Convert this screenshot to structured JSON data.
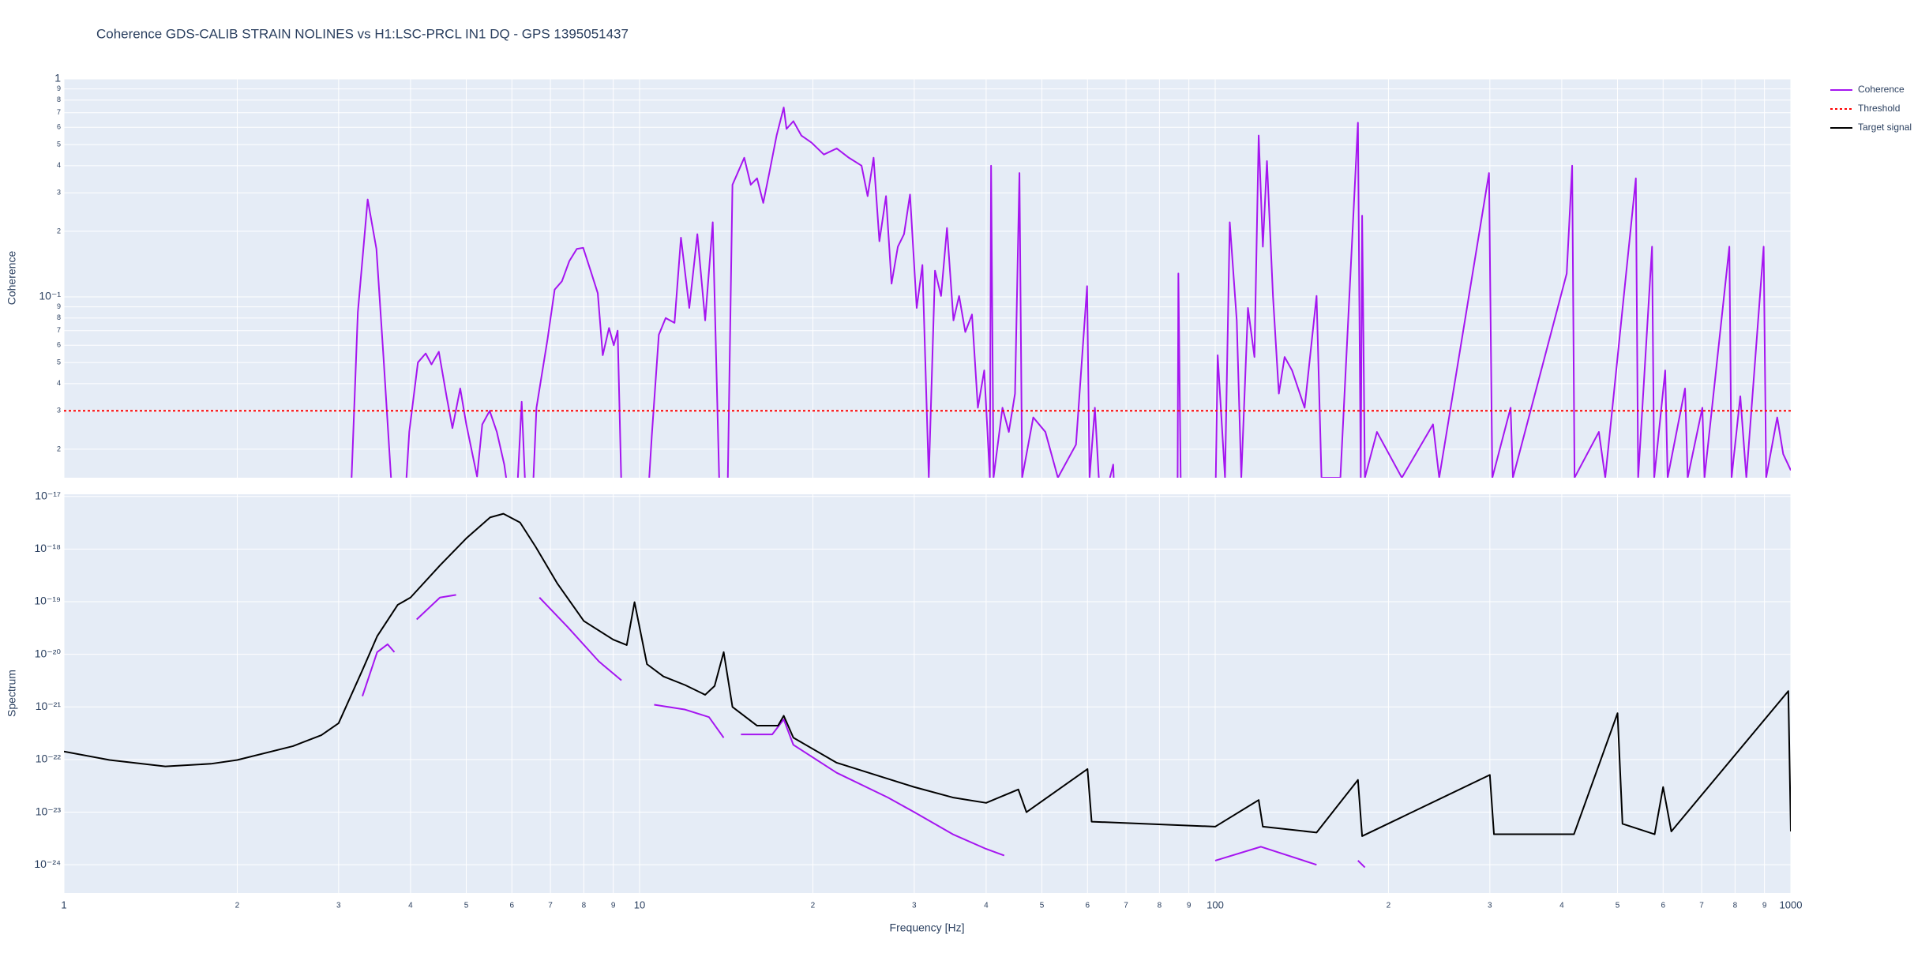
{
  "chart_data": [
    {
      "type": "line",
      "title": "Coherence GDS-CALIB STRAIN NOLINES vs H1:LSC-PRCL IN1 DQ - GPS 1395051437",
      "y_label": "Coherence",
      "ylog": true,
      "ylim": [
        0.0148,
        1
      ],
      "grid": true,
      "legend": "right",
      "yticks": [
        {
          "value": 0.02,
          "label": "2"
        },
        {
          "value": 0.03,
          "label": "3"
        },
        {
          "value": 0.04,
          "label": "4"
        },
        {
          "value": 0.05,
          "label": "5"
        },
        {
          "value": 0.06,
          "label": "6"
        },
        {
          "value": 0.07,
          "label": "7"
        },
        {
          "value": 0.08,
          "label": "8"
        },
        {
          "value": 0.09,
          "label": "9"
        },
        {
          "value": 0.1,
          "label": "10⁻¹"
        },
        {
          "value": 0.2,
          "label": "2"
        },
        {
          "value": 0.3,
          "label": "3"
        },
        {
          "value": 0.4,
          "label": "4"
        },
        {
          "value": 0.5,
          "label": "5"
        },
        {
          "value": 0.6,
          "label": "6"
        },
        {
          "value": 0.7,
          "label": "7"
        },
        {
          "value": 0.8,
          "label": "8"
        },
        {
          "value": 0.9,
          "label": "9"
        },
        1
      ],
      "series": [
        {
          "name": "Coherence",
          "color": "#a515f0",
          "x": [
            3.1,
            3.16,
            3.24,
            3.37,
            3.49,
            3.59,
            3.7,
            3.8,
            3.9,
            3.98,
            4.12,
            4.25,
            4.35,
            4.48,
            4.62,
            4.73,
            4.88,
            5.0,
            5.22,
            5.33,
            5.49,
            5.65,
            5.82,
            5.99,
            6.1,
            6.24,
            6.36,
            6.5,
            6.62,
            6.92,
            7.12,
            7.33,
            7.55,
            7.78,
            7.98,
            8.22,
            8.46,
            8.63,
            8.85,
            9.02,
            9.16,
            9.29,
            9.4,
            10.3,
            10.5,
            10.8,
            11.1,
            11.5,
            11.8,
            12.2,
            12.6,
            13.0,
            13.4,
            13.8,
            14.2,
            14.5,
            14.8,
            15.2,
            15.6,
            16.0,
            16.4,
            16.8,
            17.3,
            17.8,
            18.0,
            18.5,
            19.1,
            19.9,
            20.9,
            22.0,
            23.1,
            24.3,
            24.9,
            25.5,
            26.1,
            26.8,
            27.4,
            28.1,
            28.8,
            29.5,
            30.3,
            31.0,
            31.8,
            32.6,
            33.4,
            34.2,
            35.1,
            35.9,
            36.8,
            37.8,
            38.7,
            39.7,
            40.6,
            40.8,
            41.2,
            42.7,
            43.8,
            44.9,
            45.7,
            46.2,
            48.3,
            50.7,
            53.3,
            57.3,
            59.9,
            60.5,
            61.8,
            63.3,
            66.5,
            67,
            86.0,
            86.3,
            87.1,
            100,
            101,
            104,
            106,
            109,
            111,
            114,
            117,
            119,
            121,
            123,
            126,
            129,
            132,
            136,
            143,
            150,
            153,
            165,
            177,
            179,
            180,
            182,
            191,
            211,
            239,
            245,
            299,
            303,
            326,
            329,
            408,
            417,
            421,
            464,
            476,
            538,
            543,
            574,
            579,
            605,
            611,
            655,
            662,
            702,
            708,
            782,
            789,
            817,
            837,
            897,
            906,
            947,
            970,
            1000
          ],
          "values": [
            0.01,
            0.0148,
            0.085,
            0.28,
            0.166,
            0.053,
            0.0148,
            0.01,
            0.01,
            0.024,
            0.05,
            0.055,
            0.049,
            0.056,
            0.035,
            0.025,
            0.038,
            0.026,
            0.015,
            0.026,
            0.03,
            0.024,
            0.017,
            0.01,
            0.01,
            0.033,
            0.01,
            0.01,
            0.031,
            0.064,
            0.108,
            0.118,
            0.146,
            0.166,
            0.168,
            0.132,
            0.104,
            0.054,
            0.072,
            0.06,
            0.07,
            0.0148,
            0.01,
            0.01,
            0.023,
            0.067,
            0.08,
            0.076,
            0.187,
            0.089,
            0.194,
            0.078,
            0.22,
            0.01,
            0.01,
            0.327,
            0.37,
            0.435,
            0.327,
            0.35,
            0.27,
            0.37,
            0.55,
            0.74,
            0.59,
            0.64,
            0.55,
            0.51,
            0.45,
            0.48,
            0.435,
            0.4,
            0.29,
            0.435,
            0.18,
            0.29,
            0.115,
            0.17,
            0.194,
            0.295,
            0.089,
            0.14,
            0.0148,
            0.132,
            0.101,
            0.207,
            0.078,
            0.101,
            0.069,
            0.083,
            0.031,
            0.046,
            0.0148,
            0.4,
            0.0148,
            0.031,
            0.024,
            0.036,
            0.37,
            0.0148,
            0.028,
            0.024,
            0.0148,
            0.021,
            0.112,
            0.0148,
            0.031,
            0.01,
            0.017,
            0.01,
            0.01,
            0.128,
            0.0148,
            0.01,
            0.054,
            0.0148,
            0.22,
            0.078,
            0.0148,
            0.089,
            0.053,
            0.55,
            0.17,
            0.42,
            0.101,
            0.036,
            0.053,
            0.046,
            0.031,
            0.101,
            0.0148,
            0.0148,
            0.63,
            0.0148,
            0.236,
            0.0148,
            0.024,
            0.0148,
            0.026,
            0.0148,
            0.37,
            0.0148,
            0.031,
            0.0148,
            0.128,
            0.4,
            0.0148,
            0.024,
            0.0148,
            0.35,
            0.0148,
            0.17,
            0.0148,
            0.046,
            0.0148,
            0.038,
            0.0148,
            0.031,
            0.0148,
            0.17,
            0.0148,
            0.035,
            0.0148,
            0.17,
            0.0148,
            0.028,
            0.019,
            0.016
          ]
        },
        {
          "name": "Threshold",
          "color": "#ff0000",
          "dash": "dot",
          "x": [
            1,
            1000
          ],
          "values": [
            0.03,
            0.03
          ]
        }
      ]
    },
    {
      "type": "line",
      "x_label": "Frequency [Hz]",
      "y_label": "Spectrum",
      "xlog": true,
      "ylog": true,
      "xlim": [
        1,
        1000
      ],
      "ylim": [
        2.9e-25,
        1.1e-17
      ],
      "grid": true,
      "xticks": [
        1,
        2,
        3,
        4,
        5,
        6,
        7,
        8,
        9,
        10,
        {
          "value": 20,
          "label": "2"
        },
        {
          "value": 30,
          "label": "3"
        },
        {
          "value": 40,
          "label": "4"
        },
        {
          "value": 50,
          "label": "5"
        },
        {
          "value": 60,
          "label": "6"
        },
        {
          "value": 70,
          "label": "7"
        },
        {
          "value": 80,
          "label": "8"
        },
        {
          "value": 90,
          "label": "9"
        },
        100,
        {
          "value": 200,
          "label": "2"
        },
        {
          "value": 300,
          "label": "3"
        },
        {
          "value": 400,
          "label": "4"
        },
        {
          "value": 500,
          "label": "5"
        },
        {
          "value": 600,
          "label": "6"
        },
        {
          "value": 700,
          "label": "7"
        },
        {
          "value": 800,
          "label": "8"
        },
        {
          "value": 900,
          "label": "9"
        },
        1000
      ],
      "yticks": [
        {
          "value": 1e-24,
          "label": "10⁻²⁴"
        },
        {
          "value": 1e-23,
          "label": "10⁻²³"
        },
        {
          "value": 1e-22,
          "label": "10⁻²²"
        },
        {
          "value": 1e-21,
          "label": "10⁻²¹"
        },
        {
          "value": 1e-20,
          "label": "10⁻²⁰"
        },
        {
          "value": 1e-19,
          "label": "10⁻¹⁹"
        },
        {
          "value": 1e-18,
          "label": "10⁻¹⁸"
        },
        {
          "value": 1e-17,
          "label": "10⁻¹⁷"
        }
      ],
      "series": [
        {
          "color": "#a515f0",
          "x": [
            3.3,
            3.5,
            3.65,
            3.75,
            3.9,
            4.1,
            4.5,
            4.8,
            5.5,
            6.7,
            7.5,
            8.5,
            9.3,
            10,
            10.6,
            12,
            13.2,
            14,
            14.5,
            15,
            17,
            17.8,
            18.5,
            22,
            27,
            30,
            35,
            40,
            43,
            60,
            100,
            120,
            150,
            160,
            177,
            182
          ],
          "values": [
            1.6e-21,
            1.1e-20,
            1.55e-20,
            1.1e-20,
            null,
            4.6e-20,
            1.2e-19,
            1.35e-19,
            null,
            1.2e-19,
            3.3e-20,
            7.3e-21,
            3.2e-21,
            null,
            1.1e-21,
            8.9e-22,
            6.4e-22,
            2.6e-22,
            null,
            3e-22,
            3e-22,
            5.8e-22,
            1.9e-22,
            5.6e-23,
            1.9e-23,
            1e-23,
            3.8e-24,
            2e-24,
            1.5e-24,
            null,
            1.2e-24,
            2.2e-24,
            1e-24,
            null,
            1.2e-24,
            8.9e-25
          ]
        },
        {
          "name": "Target signal",
          "color": "#000000",
          "x": [
            1,
            1.2,
            1.5,
            1.8,
            2,
            2.5,
            2.8,
            3,
            3.3,
            3.5,
            3.8,
            4,
            4.5,
            5,
            5.5,
            5.8,
            6.2,
            6.6,
            7.2,
            8,
            9,
            9.5,
            9.8,
            10.3,
            11,
            12,
            13,
            13.5,
            14,
            14.5,
            16,
            17.4,
            17.8,
            18.5,
            22,
            27,
            30,
            35,
            40,
            45.5,
            47,
            60,
            61,
            100,
            119,
            121,
            150,
            177,
            180,
            300,
            305,
            420,
            500,
            510,
            580,
            600,
            620,
            990,
            1000
          ],
          "values": [
            1.42e-22,
            9.8e-23,
            7.4e-23,
            8.3e-23,
            9.8e-23,
            1.8e-22,
            2.9e-22,
            4.9e-22,
            5e-21,
            2.2e-20,
            8.7e-20,
            1.2e-19,
            4.9e-19,
            1.6e-18,
            4e-18,
            4.7e-18,
            3.2e-18,
            1.1e-18,
            2.2e-19,
            4.3e-20,
            1.9e-20,
            1.5e-20,
            9.8e-20,
            6.5e-21,
            3.8e-21,
            2.6e-21,
            1.7e-21,
            2.5e-21,
            1.1e-20,
            1e-21,
            4.4e-22,
            4.4e-22,
            6.8e-22,
            2.6e-22,
            8.7e-23,
            4.3e-23,
            3e-23,
            1.9e-23,
            1.5e-23,
            2.7e-23,
            1e-23,
            6.6e-23,
            6.6e-24,
            5.3e-24,
            1.7e-23,
            5.3e-24,
            4.1e-24,
            4.1e-23,
            3.5e-24,
            5.1e-23,
            3.8e-24,
            3.8e-24,
            7.6e-22,
            6e-24,
            3.8e-24,
            3e-23,
            4.3e-24,
            2e-21,
            4.3e-24
          ]
        }
      ]
    }
  ]
}
